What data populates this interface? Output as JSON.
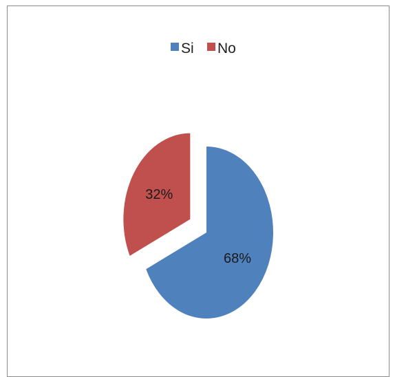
{
  "chart_data": {
    "type": "pie",
    "title": "",
    "legend_position": "top",
    "slices": [
      {
        "label": "Si",
        "value": 68,
        "value_label": "68%",
        "color": "#4f81bd",
        "exploded": false
      },
      {
        "label": "No",
        "value": 32,
        "value_label": "32%",
        "color": "#c0504d",
        "exploded": true
      }
    ]
  }
}
